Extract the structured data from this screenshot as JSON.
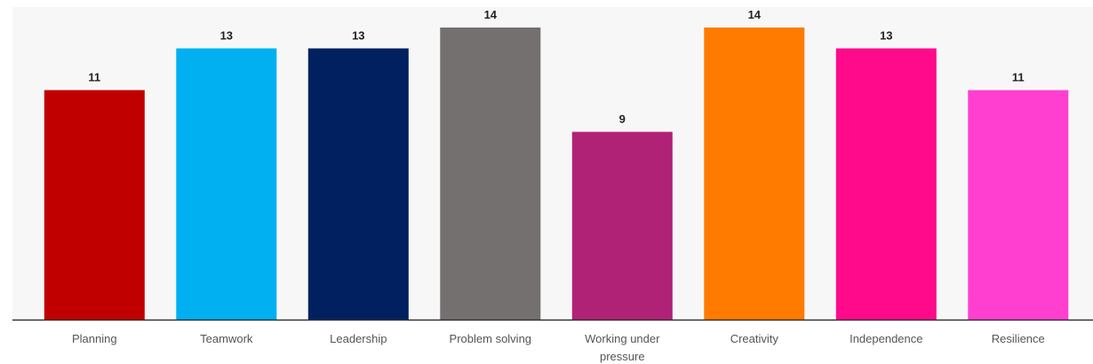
{
  "chart_data": {
    "type": "bar",
    "categories": [
      [
        "Planning"
      ],
      [
        "Teamwork"
      ],
      [
        "Leadership"
      ],
      [
        "Problem solving"
      ],
      [
        "Working under",
        "pressure"
      ],
      [
        "Creativity"
      ],
      [
        "Independence"
      ],
      [
        "Resilience"
      ]
    ],
    "values": [
      11,
      13,
      13,
      14,
      9,
      14,
      13,
      11
    ],
    "colors": [
      "#C00000",
      "#00B0F0",
      "#002060",
      "#747070",
      "#B02276",
      "#FF7B00",
      "#FF0A8A",
      "#FF3FD0"
    ],
    "ylim": [
      0,
      14
    ],
    "grid": false,
    "legend": false,
    "title": "",
    "xlabel": "",
    "ylabel": ""
  },
  "style": {
    "plot_background": "#F7F7F7",
    "axis_color": "#333333"
  }
}
